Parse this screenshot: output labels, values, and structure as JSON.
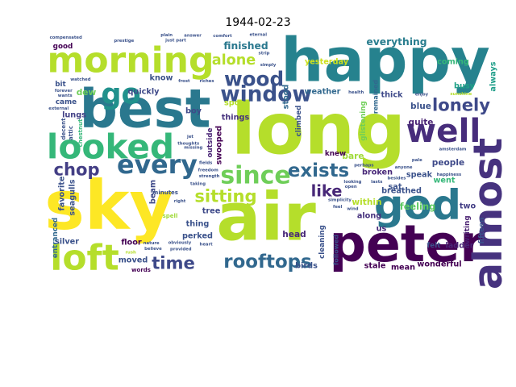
{
  "chart_data": {
    "type": "wordcloud",
    "title": "1944-02-23",
    "words": [
      {
        "text": "long",
        "weight": 100,
        "color": "#b5de2b",
        "rot": 0
      },
      {
        "text": "sky",
        "weight": 95,
        "color": "#fde725",
        "rot": 0
      },
      {
        "text": "air",
        "weight": 93,
        "color": "#b5de2b",
        "rot": 0
      },
      {
        "text": "happy",
        "weight": 85,
        "color": "#26828e",
        "rot": 0
      },
      {
        "text": "best",
        "weight": 75,
        "color": "#2a788e",
        "rot": 0
      },
      {
        "text": "peter",
        "weight": 72,
        "color": "#440154",
        "rot": 0
      },
      {
        "text": "god",
        "weight": 58,
        "color": "#2a788e",
        "rot": 0
      },
      {
        "text": "almost",
        "weight": 56,
        "color": "#46327e",
        "rot": -90
      },
      {
        "text": "morning",
        "weight": 50,
        "color": "#b5de2b",
        "rot": 0
      },
      {
        "text": "loft",
        "weight": 50,
        "color": "#b5de2b",
        "rot": 0
      },
      {
        "text": "looked",
        "weight": 48,
        "color": "#35b779",
        "rot": 0
      },
      {
        "text": "well",
        "weight": 46,
        "color": "#472d7b",
        "rot": 0
      },
      {
        "text": "go",
        "weight": 40,
        "color": "#21918c",
        "rot": 0
      },
      {
        "text": "every",
        "weight": 36,
        "color": "#31688e",
        "rot": 0
      },
      {
        "text": "since",
        "weight": 34,
        "color": "#6ece58",
        "rot": 0
      },
      {
        "text": "window",
        "weight": 30,
        "color": "#3b528b",
        "rot": 0
      },
      {
        "text": "wood",
        "weight": 28,
        "color": "#3b528b",
        "rot": 0
      },
      {
        "text": "exists",
        "weight": 26,
        "color": "#31688e",
        "rot": 0
      },
      {
        "text": "rooftops",
        "weight": 26,
        "color": "#31688e",
        "rot": 0
      },
      {
        "text": "lonely",
        "weight": 24,
        "color": "#3e4989",
        "rot": 0
      },
      {
        "text": "sitting",
        "weight": 24,
        "color": "#b5de2b",
        "rot": 0
      },
      {
        "text": "time",
        "weight": 24,
        "color": "#3e4989",
        "rot": 0
      },
      {
        "text": "chop",
        "weight": 24,
        "color": "#433e85",
        "rot": 0
      },
      {
        "text": "like",
        "weight": 22,
        "color": "#482878",
        "rot": 0
      },
      {
        "text": "alone",
        "weight": 20,
        "color": "#b5de2b",
        "rot": 0
      },
      {
        "text": "finished",
        "weight": 14,
        "color": "#2a788e",
        "rot": 0
      },
      {
        "text": "everything",
        "weight": 14,
        "color": "#287d8e",
        "rot": 0
      },
      {
        "text": "yesterday",
        "weight": 11,
        "color": "#cde11d",
        "rot": 0
      },
      {
        "text": "coming",
        "weight": 11,
        "color": "#35b779",
        "rot": 0
      },
      {
        "text": "ladder",
        "weight": 11,
        "color": "#482475",
        "rot": 0
      },
      {
        "text": "busy",
        "weight": 11,
        "color": "#1fa187",
        "rot": 0
      },
      {
        "text": "always",
        "weight": 11,
        "color": "#1f9e89",
        "rot": -90
      },
      {
        "text": "know",
        "weight": 11,
        "color": "#3b528b",
        "rot": 0
      },
      {
        "text": "quickly",
        "weight": 11,
        "color": "#3e4989",
        "rot": 0
      },
      {
        "text": "dew",
        "weight": 12,
        "color": "#6ece58",
        "rot": 0
      },
      {
        "text": "lungs",
        "weight": 11,
        "color": "#424086",
        "rot": 0
      },
      {
        "text": "weather",
        "weight": 11,
        "color": "#31688e",
        "rot": 0
      },
      {
        "text": "thick",
        "weight": 11,
        "color": "#3e4989",
        "rot": 0
      },
      {
        "text": "blue",
        "weight": 12,
        "color": "#3b528b",
        "rot": 0
      },
      {
        "text": "quite",
        "weight": 12,
        "color": "#482173",
        "rot": 0
      },
      {
        "text": "bare",
        "weight": 12,
        "color": "#a0da39",
        "rot": 0
      },
      {
        "text": "people",
        "weight": 12,
        "color": "#3e4989",
        "rot": 0
      },
      {
        "text": "speak",
        "weight": 11,
        "color": "#3b528b",
        "rot": 0
      },
      {
        "text": "sat",
        "weight": 11,
        "color": "#3b528b",
        "rot": 0
      },
      {
        "text": "went",
        "weight": 11,
        "color": "#35b779",
        "rot": 0
      },
      {
        "text": "feeling",
        "weight": 13,
        "color": "#5ec962",
        "rot": 0
      },
      {
        "text": "two",
        "weight": 11,
        "color": "#433e85",
        "rot": 0
      },
      {
        "text": "writing",
        "weight": 10,
        "color": "#481f70",
        "rot": -90
      },
      {
        "text": "fifteen",
        "weight": 10,
        "color": "#3b528b",
        "rot": -90
      },
      {
        "text": "boy",
        "weight": 11,
        "color": "#3e4989",
        "rot": 0
      },
      {
        "text": "beam",
        "weight": 11,
        "color": "#3e4989",
        "rot": -90
      },
      {
        "text": "spot",
        "weight": 11,
        "color": "#b5de2b",
        "rot": 0
      },
      {
        "text": "things",
        "weight": 11,
        "color": "#46327e",
        "rot": 0
      },
      {
        "text": "swooped",
        "weight": 11,
        "color": "#440154",
        "rot": -90
      },
      {
        "text": "outside",
        "weight": 10,
        "color": "#482475",
        "rot": -90
      },
      {
        "text": "stood",
        "weight": 11,
        "color": "#31688e",
        "rot": -90
      },
      {
        "text": "climbed",
        "weight": 10,
        "color": "#3b528b",
        "rot": -90
      },
      {
        "text": "glistening",
        "weight": 10,
        "color": "#6ece58",
        "rot": -90
      },
      {
        "text": "remained",
        "weight": 9,
        "color": "#31688e",
        "rot": -90
      },
      {
        "text": "broken",
        "weight": 11,
        "color": "#482878",
        "rot": 0
      },
      {
        "text": "within",
        "weight": 12,
        "color": "#b5de2b",
        "rot": 0
      },
      {
        "text": "along",
        "weight": 11,
        "color": "#46327e",
        "rot": 0
      },
      {
        "text": "breathed",
        "weight": 11,
        "color": "#3b528b",
        "rot": 0
      },
      {
        "text": "us",
        "weight": 11,
        "color": "#482878",
        "rot": 0
      },
      {
        "text": "knew",
        "weight": 10,
        "color": "#440154",
        "rot": 0
      },
      {
        "text": "favorite",
        "weight": 11,
        "color": "#3b528b",
        "rot": -90
      },
      {
        "text": "seagulls",
        "weight": 11,
        "color": "#3b528b",
        "rot": -90
      },
      {
        "text": "tree",
        "weight": 11,
        "color": "#3e4989",
        "rot": 0
      },
      {
        "text": "thing",
        "weight": 11,
        "color": "#3b528b",
        "rot": 0
      },
      {
        "text": "perked",
        "weight": 11,
        "color": "#3b528b",
        "rot": 0
      },
      {
        "text": "floor",
        "weight": 11,
        "color": "#440154",
        "rot": 0
      },
      {
        "text": "silver",
        "weight": 11,
        "color": "#3b528b",
        "rot": 0
      },
      {
        "text": "moved",
        "weight": 11,
        "color": "#3b528b",
        "rot": 0
      },
      {
        "text": "head",
        "weight": 12,
        "color": "#482878",
        "rot": 0
      },
      {
        "text": "entranced",
        "weight": 10,
        "color": "#31688e",
        "rot": -90
      },
      {
        "text": "minutes",
        "weight": 8,
        "color": "#3b528b",
        "rot": 0
      },
      {
        "text": "words",
        "weight": 8,
        "color": "#440154",
        "rot": 0
      },
      {
        "text": "birds",
        "weight": 11,
        "color": "#3b528b",
        "rot": 0
      },
      {
        "text": "stale",
        "weight": 11,
        "color": "#440154",
        "rot": 0
      },
      {
        "text": "mean",
        "weight": 11,
        "color": "#440154",
        "rot": 0
      },
      {
        "text": "wonderful",
        "weight": 11,
        "color": "#440154",
        "rot": 0
      },
      {
        "text": "felt",
        "weight": 10,
        "color": "#3b528b",
        "rot": 0
      },
      {
        "text": "cleaning",
        "weight": 10,
        "color": "#3b528b",
        "rot": -90
      },
      {
        "text": "followed",
        "weight": 9,
        "color": "#3b528b",
        "rot": -90
      },
      {
        "text": "decent",
        "weight": 8,
        "color": "#3b528b",
        "rot": -90
      },
      {
        "text": "attic",
        "weight": 8,
        "color": "#3b528b",
        "rot": -90
      },
      {
        "text": "chestnut",
        "weight": 8,
        "color": "#35b779",
        "rot": -90
      },
      {
        "text": "came",
        "weight": 10,
        "color": "#3b528b",
        "rot": 0
      },
      {
        "text": "bit",
        "weight": 10,
        "color": "#3b528b",
        "rot": 0
      },
      {
        "text": "good",
        "weight": 10,
        "color": "#440154",
        "rot": 0
      },
      {
        "text": "spell",
        "weight": 8,
        "color": "#a0da39",
        "rot": 0
      },
      {
        "text": "strength",
        "weight": 6,
        "color": "#3b528b",
        "rot": 0
      },
      {
        "text": "watched",
        "weight": 6,
        "color": "#3b528b",
        "rot": 0
      },
      {
        "text": "missing",
        "weight": 6,
        "color": "#3b528b",
        "rot": 0
      },
      {
        "text": "rush",
        "weight": 6,
        "color": "#b5de2b",
        "rot": 0
      },
      {
        "text": "looking",
        "weight": 6,
        "color": "#3b528b",
        "rot": 0
      },
      {
        "text": "obviously",
        "weight": 6,
        "color": "#3b528b",
        "rot": 0
      },
      {
        "text": "strip",
        "weight": 6,
        "color": "#3b528b",
        "rot": 0
      },
      {
        "text": "simply",
        "weight": 6,
        "color": "#3b528b",
        "rot": 0
      },
      {
        "text": "enjoy",
        "weight": 6,
        "color": "#3b528b",
        "rot": 0
      },
      {
        "text": "simplicity",
        "weight": 6,
        "color": "#3b528b",
        "rot": 0
      },
      {
        "text": "prestige",
        "weight": 6,
        "color": "#3b528b",
        "rot": 0
      },
      {
        "text": "happiness",
        "weight": 6,
        "color": "#3b528b",
        "rot": 0
      },
      {
        "text": "external",
        "weight": 6,
        "color": "#3b528b",
        "rot": 0
      },
      {
        "text": "sunshine",
        "weight": 6,
        "color": "#b5de2b",
        "rot": 0
      },
      {
        "text": "freedom",
        "weight": 6,
        "color": "#3b528b",
        "rot": 0
      },
      {
        "text": "health",
        "weight": 6,
        "color": "#3b528b",
        "rot": 0
      },
      {
        "text": "nature",
        "weight": 6,
        "color": "#3b528b",
        "rot": 0
      },
      {
        "text": "riches",
        "weight": 6,
        "color": "#3b528b",
        "rot": 0
      },
      {
        "text": "comfort",
        "weight": 6,
        "color": "#3b528b",
        "rot": 0
      },
      {
        "text": "believe",
        "weight": 6,
        "color": "#3b528b",
        "rot": 0
      },
      {
        "text": "thoughts",
        "weight": 6,
        "color": "#3b528b",
        "rot": 0
      },
      {
        "text": "provided",
        "weight": 6,
        "color": "#3b528b",
        "rot": 0
      },
      {
        "text": "compensated",
        "weight": 6,
        "color": "#3b528b",
        "rot": 0
      },
      {
        "text": "eternal",
        "weight": 6,
        "color": "#3b528b",
        "rot": 0
      },
      {
        "text": "perhaps",
        "weight": 6,
        "color": "#3b528b",
        "rot": 0
      },
      {
        "text": "lasts",
        "weight": 6,
        "color": "#3b528b",
        "rot": 0
      },
      {
        "text": "forever",
        "weight": 6,
        "color": "#3b528b",
        "rot": 0
      },
      {
        "text": "answer",
        "weight": 6,
        "color": "#3b528b",
        "rot": 0
      },
      {
        "text": "wants",
        "weight": 6,
        "color": "#3b528b",
        "rot": 0
      },
      {
        "text": "open",
        "weight": 6,
        "color": "#3b528b",
        "rot": 0
      },
      {
        "text": "amsterdam",
        "weight": 6,
        "color": "#3b528b",
        "rot": 0
      },
      {
        "text": "fields",
        "weight": 6,
        "color": "#3b528b",
        "rot": 0
      },
      {
        "text": "heart",
        "weight": 6,
        "color": "#3b528b",
        "rot": 0
      },
      {
        "text": "taking",
        "weight": 6,
        "color": "#3b528b",
        "rot": 0
      },
      {
        "text": "plain",
        "weight": 6,
        "color": "#3b528b",
        "rot": 0
      },
      {
        "text": "pale",
        "weight": 6,
        "color": "#3b528b",
        "rot": 0
      },
      {
        "text": "right",
        "weight": 6,
        "color": "#3b528b",
        "rot": 0
      },
      {
        "text": "feel",
        "weight": 6,
        "color": "#3b528b",
        "rot": 0
      },
      {
        "text": "anyone",
        "weight": 6,
        "color": "#3b528b",
        "rot": 0
      },
      {
        "text": "besides",
        "weight": 6,
        "color": "#3b528b",
        "rot": 0
      },
      {
        "text": "just part",
        "weight": 6,
        "color": "#3b528b",
        "rot": 0
      },
      {
        "text": "jet",
        "weight": 6,
        "color": "#3b528b",
        "rot": 0
      },
      {
        "text": "frost",
        "weight": 6,
        "color": "#3b528b",
        "rot": 0
      },
      {
        "text": "wind",
        "weight": 6,
        "color": "#3b528b",
        "rot": 0
      }
    ]
  }
}
